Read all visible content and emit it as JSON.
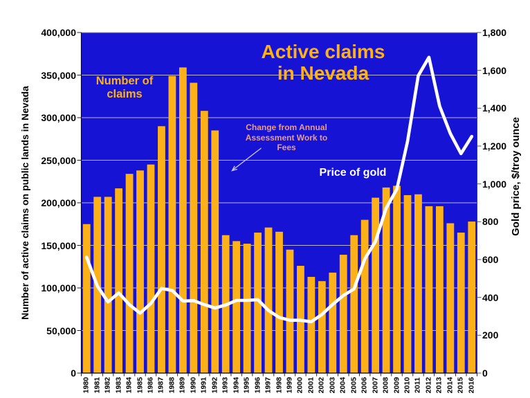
{
  "title": {
    "line1": "Active claims",
    "line2": "in Nevada"
  },
  "annotations": {
    "bars_label": {
      "line1": "Number of",
      "line2": "claims"
    },
    "fees_note": {
      "line1": "Change from Annual",
      "line2": "Assessment Work to",
      "line3": "Fees"
    },
    "line_label": "Price of gold"
  },
  "axes": {
    "left_title": "Number of active claims on public lands in Nevada",
    "right_title": "Gold price, $/troy ounce",
    "left_tick_labels": [
      "0",
      "50,000",
      "100,000",
      "150,000",
      "200,000",
      "250,000",
      "300,000",
      "350,000",
      "400,000"
    ],
    "right_tick_labels": [
      "0",
      "200",
      "400",
      "600",
      "800",
      "1,000",
      "1,200",
      "1,400",
      "1,600",
      "1,800"
    ]
  },
  "colors": {
    "plot_bg": "#1713D4",
    "bar": "#FBB117",
    "gold_text": "#FBB117",
    "line": "#FFFFFF",
    "fees_note_text": "#EC9E83",
    "arrow": "#C9C5F4",
    "grid": "#B9B7CE"
  },
  "chart_data": {
    "type": "bar",
    "title": "Active claims in Nevada",
    "grid": true,
    "legend_position": "none (in-plot text labels)",
    "categories": [
      "1980",
      "1981",
      "1982",
      "1983",
      "1984",
      "1985",
      "1986",
      "1987",
      "1988",
      "1989",
      "1990",
      "1991",
      "1992",
      "1993",
      "1994",
      "1995",
      "1996",
      "1997",
      "1998",
      "1999",
      "2000",
      "2001",
      "2002",
      "2003",
      "2004",
      "2005",
      "2006",
      "2007",
      "2008",
      "2009",
      "2010",
      "2011",
      "2012",
      "2013",
      "2014",
      "2015",
      "2016"
    ],
    "series": [
      {
        "name": "Number of claims",
        "type": "bar",
        "axis": "left",
        "color": "#FBB117",
        "values": [
          175000,
          207000,
          207000,
          217000,
          234000,
          238000,
          245000,
          290000,
          349000,
          359000,
          341000,
          308000,
          285000,
          162000,
          155000,
          152000,
          165000,
          171000,
          166000,
          145000,
          126000,
          113000,
          108000,
          118000,
          139000,
          162000,
          180000,
          206000,
          218000,
          220000,
          209000,
          210000,
          196000,
          196000,
          176000,
          165000,
          178000
        ]
      },
      {
        "name": "Price of gold",
        "type": "line",
        "axis": "right",
        "color": "#FFFFFF",
        "values": [
          612,
          460,
          376,
          424,
          361,
          317,
          368,
          447,
          437,
          381,
          383,
          362,
          344,
          360,
          384,
          384,
          388,
          331,
          294,
          279,
          279,
          271,
          310,
          363,
          410,
          445,
          603,
          695,
          872,
          972,
          1225,
          1572,
          1669,
          1411,
          1266,
          1160,
          1251
        ]
      }
    ],
    "left_axis": {
      "label": "Number of active claims on public lands in Nevada",
      "min": 0,
      "max": 400000,
      "tick_step": 50000
    },
    "right_axis": {
      "label": "Gold price, $/troy ounce",
      "min": 0,
      "max": 1800,
      "tick_step": 200
    },
    "xlabel": "",
    "ylabel": "Number of active claims on public lands in Nevada"
  }
}
